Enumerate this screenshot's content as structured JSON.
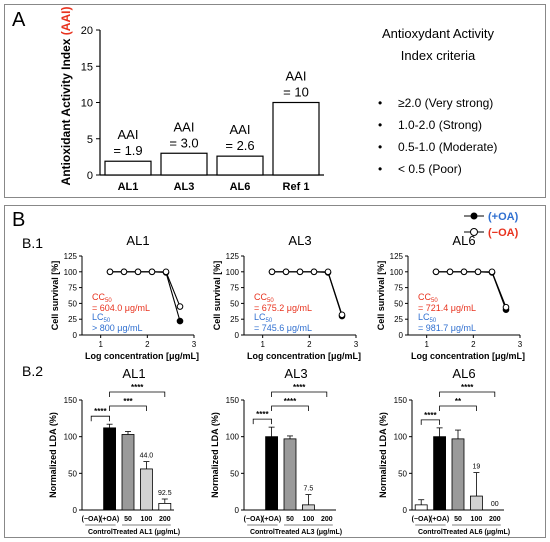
{
  "panel_a": {
    "label": "A",
    "ylabel": "Antioxidant Activity Index",
    "ylabel_suffix": "(AAI)",
    "yticks": [
      "0",
      "5",
      "10",
      "15",
      "20"
    ],
    "criteria_title_1": "Antioxydant Activity",
    "criteria_title_2": "Index criteria",
    "criteria": [
      "≥2.0  (Very strong)",
      "1.0-2.0  (Strong)",
      "0.5-1.0  (Moderate)",
      "< 0.5  (Poor)"
    ]
  },
  "panel_b": {
    "label": "B",
    "b1_label": "B.1",
    "b2_label": "B.2",
    "legend": {
      "plus_oa": "(+OA)",
      "minus_oa": "(−OA)"
    },
    "colors": {
      "red": "#e8321e",
      "blue": "#2f6fd0",
      "grey": "#9a9a9a",
      "lightgrey": "#d2d2d2"
    },
    "b1_ylabel": "Cell survival [%]",
    "b1_xlabel": "Log concentration [μg/mL]",
    "b1_yticks": [
      "0",
      "25",
      "50",
      "75",
      "100",
      "125"
    ],
    "b1_xticks": [
      "1",
      "2",
      "3"
    ],
    "b2_ylabel": "Normalized LDA (%)",
    "b2_yticks": [
      "0",
      "50",
      "100",
      "150"
    ],
    "b2_xticks": [
      "(−OA)",
      "(+OA)",
      "50",
      "100",
      "200"
    ],
    "control_label": "Control",
    "sig_4": "****",
    "sig_3": "***",
    "sig_2": "**"
  },
  "chart_data": [
    {
      "type": "bar",
      "panel": "A",
      "categories": [
        "AL1",
        "AL3",
        "AL6",
        "Ref 1"
      ],
      "values": [
        1.9,
        3.0,
        2.6,
        10
      ],
      "labels": [
        "AAI",
        "AAI",
        "AAI",
        "AAI"
      ],
      "value_labels": [
        "= 1.9",
        "= 3.0",
        "= 2.6",
        "= 10"
      ],
      "ylabel": "Antioxidant Activity Index (AAI)",
      "ylim": [
        0,
        20
      ]
    },
    {
      "type": "line",
      "panel": "B.1",
      "title": "AL1",
      "xlabel": "Log concentration [μg/mL]",
      "ylabel": "Cell survival [%]",
      "xlim": [
        0.6,
        3.0
      ],
      "ylim": [
        0,
        125
      ],
      "series": [
        {
          "name": "(+OA)",
          "x": [
            1.2,
            1.5,
            1.8,
            2.1,
            2.4,
            2.7
          ],
          "y": [
            100,
            100,
            100,
            100,
            99,
            22
          ]
        },
        {
          "name": "(−OA)",
          "x": [
            1.2,
            1.5,
            1.8,
            2.1,
            2.4,
            2.7
          ],
          "y": [
            100,
            100,
            100,
            100,
            100,
            45
          ]
        }
      ],
      "cc50_label": "CC",
      "cc50_sub": "50",
      "cc50_value": "= 604.0 μg/mL",
      "lc50_label": "LC",
      "lc50_sub": "50",
      "lc50_value": "> 800 μg/mL"
    },
    {
      "type": "line",
      "panel": "B.1",
      "title": "AL3",
      "xlabel": "Log concentration [μg/mL]",
      "ylabel": "Cell survival [%]",
      "xlim": [
        0.6,
        3.0
      ],
      "ylim": [
        0,
        125
      ],
      "series": [
        {
          "name": "(+OA)",
          "x": [
            1.2,
            1.5,
            1.8,
            2.1,
            2.4,
            2.7
          ],
          "y": [
            100,
            100,
            100,
            100,
            99,
            30
          ]
        },
        {
          "name": "(−OA)",
          "x": [
            1.2,
            1.5,
            1.8,
            2.1,
            2.4,
            2.7
          ],
          "y": [
            100,
            100,
            100,
            100,
            100,
            32
          ]
        }
      ],
      "cc50_label": "CC",
      "cc50_sub": "50",
      "cc50_value": "= 675.2 μg/mL",
      "lc50_label": "LC",
      "lc50_sub": "50",
      "lc50_value": "= 745.6 μg/mL"
    },
    {
      "type": "line",
      "panel": "B.1",
      "title": "AL6",
      "xlabel": "Log concentration [μg/mL]",
      "ylabel": "Cell survival [%]",
      "xlim": [
        0.6,
        3.0
      ],
      "ylim": [
        0,
        125
      ],
      "series": [
        {
          "name": "(+OA)",
          "x": [
            1.2,
            1.5,
            1.8,
            2.1,
            2.4,
            2.7
          ],
          "y": [
            100,
            100,
            100,
            100,
            99,
            40
          ]
        },
        {
          "name": "(−OA)",
          "x": [
            1.2,
            1.5,
            1.8,
            2.1,
            2.4,
            2.7
          ],
          "y": [
            100,
            100,
            100,
            100,
            100,
            44
          ]
        }
      ],
      "cc50_label": "CC",
      "cc50_sub": "50",
      "cc50_value": "= 721.4 μg/mL",
      "lc50_label": "LC",
      "lc50_sub": "50",
      "lc50_value": "= 981.7 μg/mL"
    },
    {
      "type": "bar",
      "panel": "B.2",
      "title": "AL1",
      "categories": [
        "(−OA)",
        "(+OA)",
        "50",
        "100",
        "200"
      ],
      "values": [
        0,
        112,
        103,
        56,
        9
      ],
      "errors": [
        0,
        5,
        4,
        10,
        6
      ],
      "bar_labels": [
        "",
        "",
        "",
        "44.0",
        "92.5"
      ],
      "ylabel": "Normalized LDA (%)",
      "ylim": [
        0,
        150
      ],
      "treated_label": "Treated AL1 (μg/mL)",
      "significance": [
        {
          "from": "(−OA)",
          "to": "(+OA)",
          "label": "****"
        },
        {
          "from": "(+OA)",
          "to": "100",
          "label": "***"
        },
        {
          "from": "(+OA)",
          "to": "200",
          "label": "****"
        }
      ]
    },
    {
      "type": "bar",
      "panel": "B.2",
      "title": "AL3",
      "categories": [
        "(−OA)",
        "(+OA)",
        "50",
        "100",
        "200"
      ],
      "values": [
        0,
        100,
        97,
        7,
        0
      ],
      "errors": [
        0,
        13,
        4,
        14,
        0
      ],
      "bar_labels": [
        "",
        "",
        "",
        "7.5",
        ""
      ],
      "ylabel": "Normalized LDA (%)",
      "ylim": [
        0,
        150
      ],
      "treated_label": "Treated AL3 (μg/mL)",
      "significance": [
        {
          "from": "(−OA)",
          "to": "(+OA)",
          "label": "****"
        },
        {
          "from": "(+OA)",
          "to": "100",
          "label": "****"
        },
        {
          "from": "(+OA)",
          "to": "200",
          "label": "****"
        }
      ]
    },
    {
      "type": "bar",
      "panel": "B.2",
      "title": "AL6",
      "categories": [
        "(−OA)",
        "(+OA)",
        "50",
        "100",
        "200"
      ],
      "values": [
        7,
        100,
        97,
        19,
        0
      ],
      "errors": [
        7,
        12,
        12,
        32,
        0
      ],
      "bar_labels": [
        "",
        "",
        "",
        "19",
        "00"
      ],
      "ylabel": "Normalized LDA (%)",
      "ylim": [
        0,
        150
      ],
      "treated_label": "Treated AL6 (μg/mL)",
      "significance": [
        {
          "from": "(−OA)",
          "to": "(+OA)",
          "label": "****"
        },
        {
          "from": "(+OA)",
          "to": "100",
          "label": "**"
        },
        {
          "from": "(+OA)",
          "to": "200",
          "label": "****"
        }
      ]
    }
  ]
}
